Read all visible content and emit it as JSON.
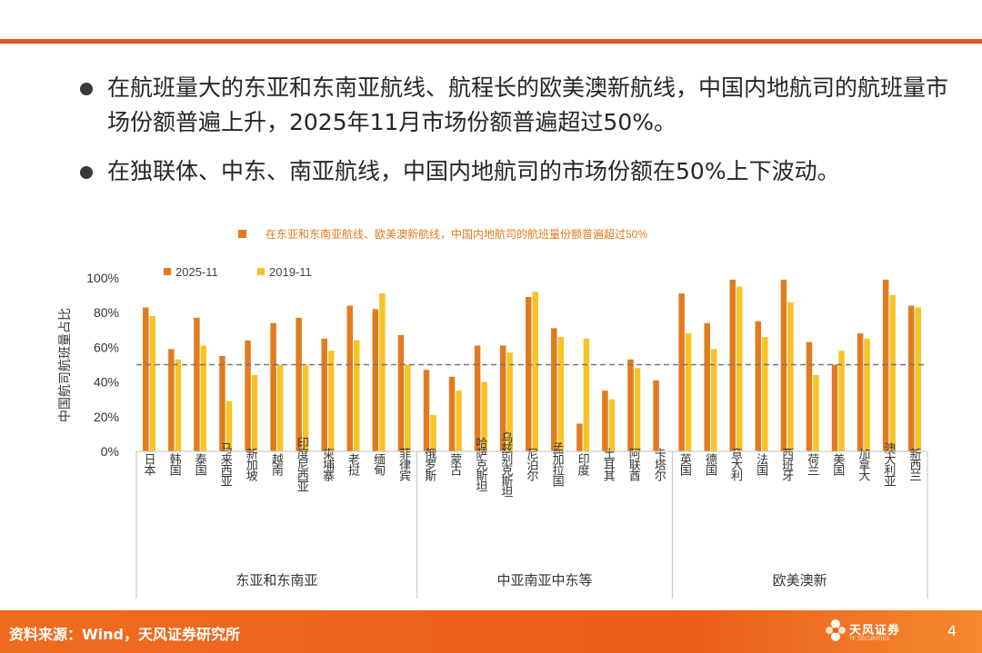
{
  "bullets": [
    "在航班量大的东亚和东南亚航线、航程长的欧美澳新航线，中国内地航司的航班量市场份额普遍上升，2025年11月市场份额普遍超过50%。",
    "在独联体、中东、南亚航线，中国内地航司的市场份额在50%上下波动。"
  ],
  "footer": {
    "source": "资料来源：Wind，天风证券研究所",
    "logo_name": "天风证券",
    "logo_sub": "TF SECURITIES",
    "page_number": "4"
  },
  "colors": {
    "accent": "#e0571b",
    "series_2025": "#e27b1f",
    "series_2019": "#f7c327",
    "threshold": "#777777"
  },
  "chart_data": {
    "type": "bar",
    "title": "在东亚和东南亚航线、欧美澳新航线，中国内地航司的航班量份额普遍超过50%",
    "ylabel": "中国航司航班量占比",
    "ylim": [
      0,
      100
    ],
    "yticks": [
      "0%",
      "20%",
      "40%",
      "60%",
      "80%",
      "100%"
    ],
    "threshold": 50,
    "categories": [
      "日本",
      "韩国",
      "泰国",
      "马来西亚",
      "新加坡",
      "越南",
      "印度尼西亚",
      "柬埔寨",
      "老挝",
      "缅甸",
      "菲律宾",
      "俄罗斯",
      "蒙古",
      "哈萨克斯坦",
      "乌兹别克斯坦",
      "尼泊尔",
      "孟加拉国",
      "印度",
      "土耳其",
      "阿联酋",
      "卡塔尔",
      "英国",
      "德国",
      "意大利",
      "法国",
      "西班牙",
      "荷兰",
      "美国",
      "加拿大",
      "澳大利亚",
      "新西兰"
    ],
    "groups": [
      {
        "name": "东亚和东南亚",
        "count": 11
      },
      {
        "name": "中亚南亚中东等",
        "count": 10
      },
      {
        "name": "欧美澳新",
        "count": 10
      }
    ],
    "series": [
      {
        "name": "2025-11",
        "values": [
          83,
          59,
          77,
          55,
          64,
          74,
          77,
          65,
          84,
          82,
          67,
          47,
          43,
          61,
          61,
          89,
          71,
          16,
          35,
          53,
          41,
          91,
          74,
          99,
          75,
          99,
          63,
          50,
          68,
          99,
          84
        ]
      },
      {
        "name": "2019-11",
        "values": [
          78,
          53,
          61,
          29,
          44,
          50,
          50,
          58,
          64,
          91,
          50,
          21,
          35,
          40,
          57,
          92,
          66,
          65,
          30,
          48,
          0,
          68,
          59,
          95,
          66,
          86,
          44,
          58,
          65,
          90,
          83
        ]
      }
    ]
  }
}
